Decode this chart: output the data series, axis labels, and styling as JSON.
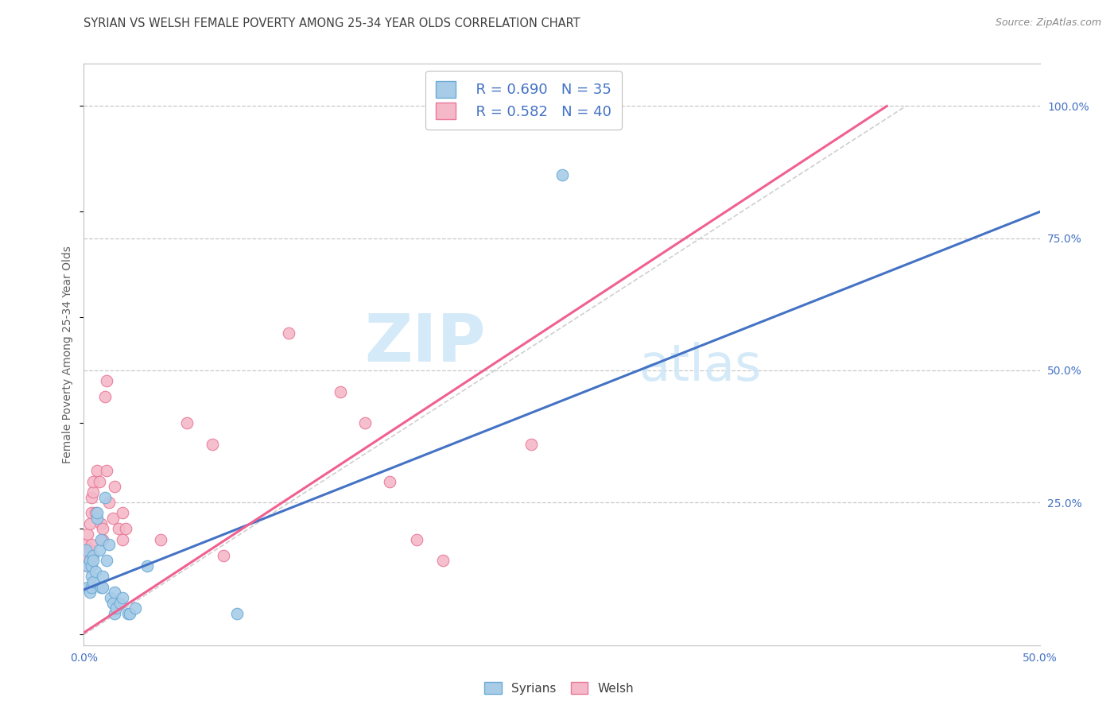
{
  "title": "SYRIAN VS WELSH FEMALE POVERTY AMONG 25-34 YEAR OLDS CORRELATION CHART",
  "source": "Source: ZipAtlas.com",
  "ylabel": "Female Poverty Among 25-34 Year Olds",
  "xlim": [
    0.0,
    0.5
  ],
  "ylim": [
    -0.02,
    1.08
  ],
  "xticks": [
    0.0,
    0.1,
    0.2,
    0.3,
    0.4,
    0.5
  ],
  "xticklabels": [
    "0.0%",
    "",
    "",
    "",
    "",
    "50.0%"
  ],
  "yticks": [
    0.25,
    0.5,
    0.75,
    1.0
  ],
  "yticklabels": [
    "25.0%",
    "50.0%",
    "75.0%",
    "100.0%"
  ],
  "background_color": "#ffffff",
  "grid_color": "#c8c8c8",
  "watermark_top": "ZIP",
  "watermark_bot": "atlas",
  "watermark_color": "#d0e8f8",
  "legend_r_syrians": "R = 0.690",
  "legend_n_syrians": "N = 35",
  "legend_r_welsh": "R = 0.582",
  "legend_n_welsh": "N = 40",
  "syrians_color": "#a8cce8",
  "syrians_edge": "#6aaad4",
  "welsh_color": "#f5b8c8",
  "welsh_edge": "#e87898",
  "syrians_line_color": "#4472c4",
  "welsh_line_color": "#f06090",
  "dashed_line_color": "#bbbbbb",
  "title_color": "#404040",
  "axis_label_color": "#606060",
  "tick_color": "#4472c4",
  "legend_text_color": "#4472c4",
  "source_color": "#888888",
  "syrians_scatter": [
    [
      0.001,
      0.16
    ],
    [
      0.002,
      0.13
    ],
    [
      0.002,
      0.09
    ],
    [
      0.003,
      0.14
    ],
    [
      0.003,
      0.08
    ],
    [
      0.004,
      0.13
    ],
    [
      0.004,
      0.09
    ],
    [
      0.004,
      0.11
    ],
    [
      0.005,
      0.15
    ],
    [
      0.005,
      0.1
    ],
    [
      0.005,
      0.14
    ],
    [
      0.006,
      0.12
    ],
    [
      0.007,
      0.22
    ],
    [
      0.007,
      0.23
    ],
    [
      0.008,
      0.16
    ],
    [
      0.009,
      0.18
    ],
    [
      0.009,
      0.09
    ],
    [
      0.01,
      0.09
    ],
    [
      0.01,
      0.11
    ],
    [
      0.011,
      0.26
    ],
    [
      0.012,
      0.14
    ],
    [
      0.013,
      0.17
    ],
    [
      0.014,
      0.07
    ],
    [
      0.015,
      0.06
    ],
    [
      0.016,
      0.08
    ],
    [
      0.016,
      0.04
    ],
    [
      0.017,
      0.05
    ],
    [
      0.019,
      0.06
    ],
    [
      0.02,
      0.07
    ],
    [
      0.023,
      0.04
    ],
    [
      0.024,
      0.04
    ],
    [
      0.027,
      0.05
    ],
    [
      0.033,
      0.13
    ],
    [
      0.08,
      0.04
    ],
    [
      0.25,
      0.87
    ]
  ],
  "welsh_scatter": [
    [
      0.001,
      0.17
    ],
    [
      0.001,
      0.15
    ],
    [
      0.002,
      0.19
    ],
    [
      0.002,
      0.13
    ],
    [
      0.003,
      0.14
    ],
    [
      0.003,
      0.16
    ],
    [
      0.003,
      0.21
    ],
    [
      0.004,
      0.17
    ],
    [
      0.004,
      0.23
    ],
    [
      0.004,
      0.26
    ],
    [
      0.005,
      0.27
    ],
    [
      0.005,
      0.29
    ],
    [
      0.006,
      0.23
    ],
    [
      0.007,
      0.31
    ],
    [
      0.008,
      0.29
    ],
    [
      0.009,
      0.21
    ],
    [
      0.01,
      0.18
    ],
    [
      0.01,
      0.2
    ],
    [
      0.011,
      0.45
    ],
    [
      0.012,
      0.48
    ],
    [
      0.012,
      0.31
    ],
    [
      0.013,
      0.25
    ],
    [
      0.015,
      0.22
    ],
    [
      0.016,
      0.28
    ],
    [
      0.018,
      0.2
    ],
    [
      0.02,
      0.18
    ],
    [
      0.02,
      0.23
    ],
    [
      0.022,
      0.2
    ],
    [
      0.04,
      0.18
    ],
    [
      0.054,
      0.4
    ],
    [
      0.067,
      0.36
    ],
    [
      0.073,
      0.15
    ],
    [
      0.107,
      0.57
    ],
    [
      0.134,
      0.46
    ],
    [
      0.147,
      0.4
    ],
    [
      0.16,
      0.29
    ],
    [
      0.174,
      0.18
    ],
    [
      0.188,
      0.14
    ],
    [
      0.234,
      0.36
    ],
    [
      0.254,
      1.0
    ]
  ],
  "syrians_line_pts": [
    [
      0.0,
      0.085
    ],
    [
      0.5,
      0.8
    ]
  ],
  "welsh_line_pts": [
    [
      -0.01,
      -0.02
    ],
    [
      0.42,
      1.0
    ]
  ],
  "dashed_line_pts": [
    [
      0.0,
      0.0
    ],
    [
      0.43,
      1.0
    ]
  ]
}
